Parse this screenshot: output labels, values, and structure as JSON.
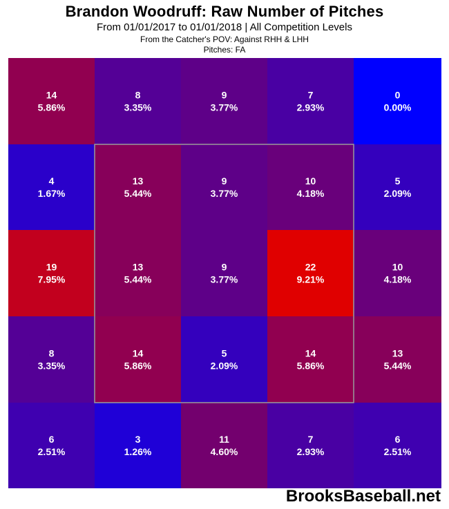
{
  "title": "Brandon Woodruff: Raw Number of Pitches",
  "subtitle": "From 01/01/2017 to 01/01/2018 | All Competition Levels",
  "pov_line": "From the Catcher's POV:  Against RHH & LHH",
  "pitches_line": "Pitches:  FA",
  "watermark": "BrooksBaseball.net",
  "chart_data": {
    "type": "heatmap",
    "rows": 5,
    "cols": 5,
    "strike_zone": {
      "rows": [
        1,
        3
      ],
      "cols": [
        1,
        3
      ]
    },
    "cells": [
      [
        {
          "count": "14",
          "pct": "5.86%"
        },
        {
          "count": "8",
          "pct": "3.35%"
        },
        {
          "count": "9",
          "pct": "3.77%"
        },
        {
          "count": "7",
          "pct": "2.93%"
        },
        {
          "count": "0",
          "pct": "0.00%"
        }
      ],
      [
        {
          "count": "4",
          "pct": "1.67%"
        },
        {
          "count": "13",
          "pct": "5.44%"
        },
        {
          "count": "9",
          "pct": "3.77%"
        },
        {
          "count": "10",
          "pct": "4.18%"
        },
        {
          "count": "5",
          "pct": "2.09%"
        }
      ],
      [
        {
          "count": "19",
          "pct": "7.95%"
        },
        {
          "count": "13",
          "pct": "5.44%"
        },
        {
          "count": "9",
          "pct": "3.77%"
        },
        {
          "count": "22",
          "pct": "9.21%"
        },
        {
          "count": "10",
          "pct": "4.18%"
        }
      ],
      [
        {
          "count": "8",
          "pct": "3.35%"
        },
        {
          "count": "14",
          "pct": "5.86%"
        },
        {
          "count": "5",
          "pct": "2.09%"
        },
        {
          "count": "14",
          "pct": "5.86%"
        },
        {
          "count": "13",
          "pct": "5.44%"
        }
      ],
      [
        {
          "count": "6",
          "pct": "2.51%"
        },
        {
          "count": "3",
          "pct": "1.26%"
        },
        {
          "count": "11",
          "pct": "4.60%"
        },
        {
          "count": "7",
          "pct": "2.93%"
        },
        {
          "count": "6",
          "pct": "2.51%"
        }
      ]
    ],
    "color_scale": {
      "low": "#0000ff",
      "mid": "#73006e",
      "high": "#e00000",
      "min_value": 0,
      "max_value": 22
    }
  }
}
